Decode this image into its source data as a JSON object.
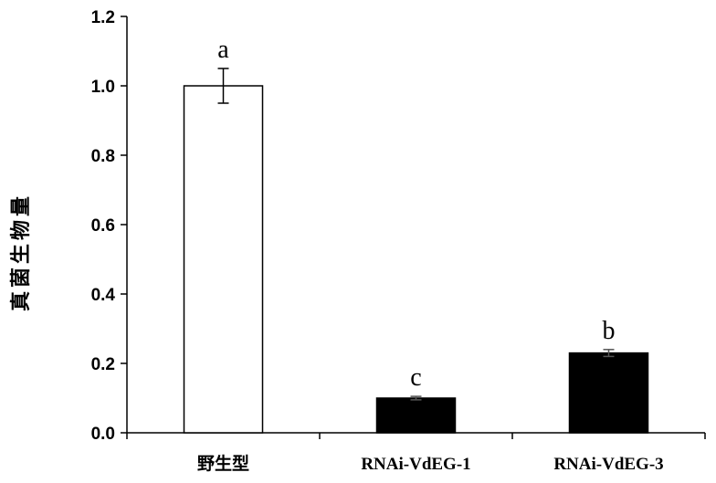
{
  "chart_data": {
    "type": "bar",
    "ylabel": "真菌生物量",
    "xlabel": "",
    "ylim": [
      0,
      1.2
    ],
    "yticks": [
      "0.0",
      "0.2",
      "0.4",
      "0.6",
      "0.8",
      "1.0",
      "1.2"
    ],
    "categories": [
      "野生型",
      "RNAi-VdEG-1",
      "RNAi-VdEG-3"
    ],
    "values": [
      1.0,
      0.1,
      0.23
    ],
    "errors": [
      0.05,
      0.005,
      0.01
    ],
    "significance": [
      "a",
      "c",
      "b"
    ],
    "colors": [
      "#ffffff",
      "#000000",
      "#000000"
    ],
    "grid": false,
    "legend": "none"
  }
}
